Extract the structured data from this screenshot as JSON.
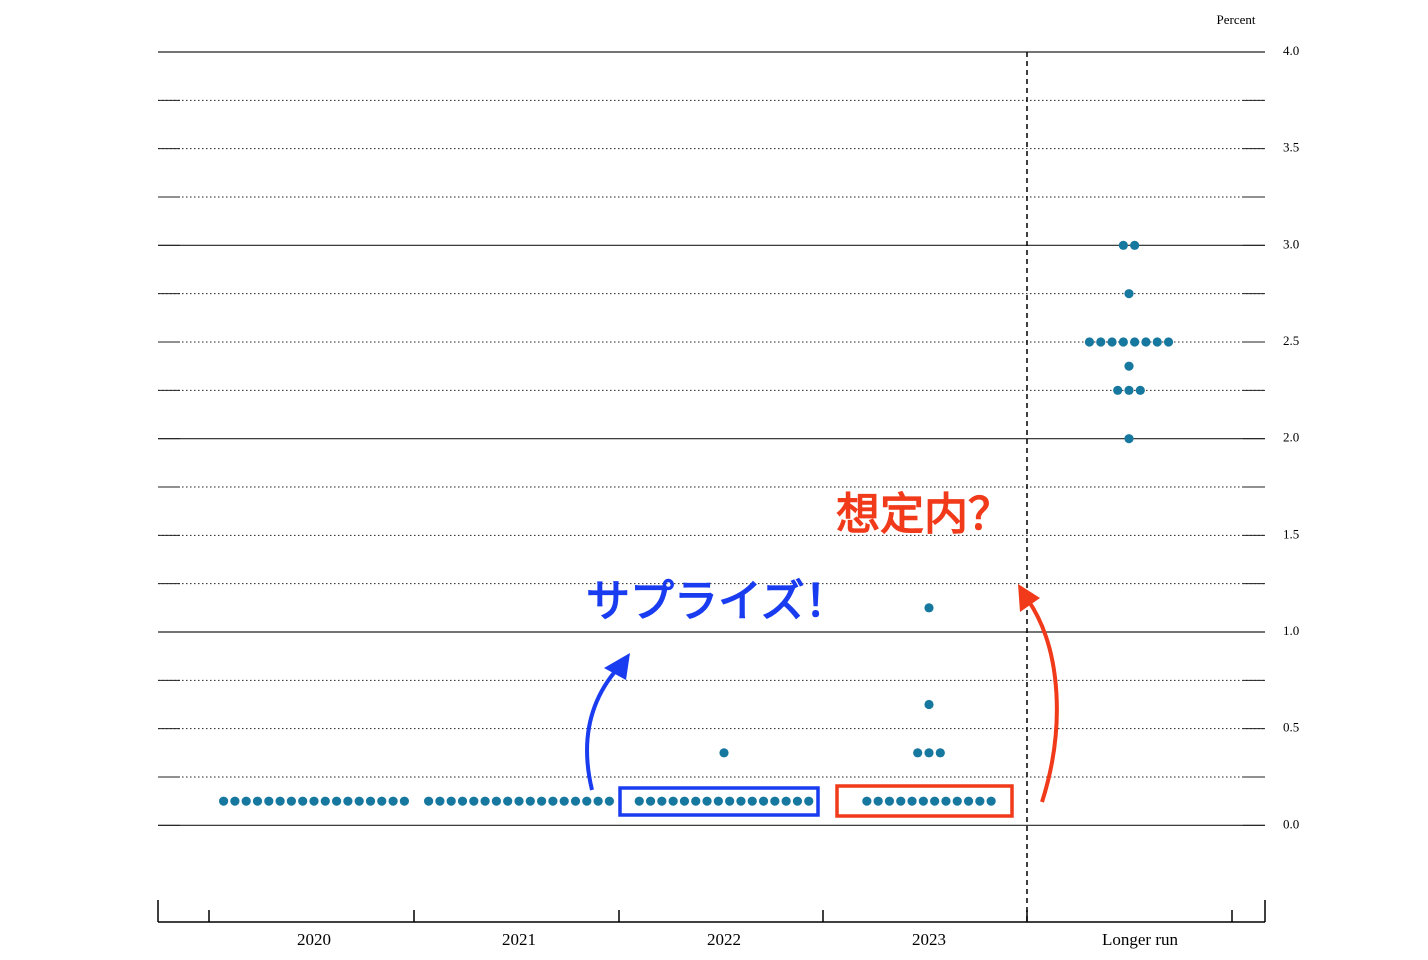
{
  "chart_data": {
    "type": "dot",
    "y_unit_label": "Percent",
    "categories": [
      "2020",
      "2021",
      "2022",
      "2023",
      "Longer run"
    ],
    "levels": [
      [
        0.125
      ],
      [
        0.125
      ],
      [
        0.125,
        0.375
      ],
      [
        0.125,
        0.375,
        0.625,
        1.125
      ],
      [
        2.0,
        2.25,
        2.375,
        2.5,
        2.75,
        3.0
      ]
    ],
    "counts": [
      [
        17
      ],
      [
        17
      ],
      [
        16,
        1
      ],
      [
        12,
        3,
        1,
        1
      ],
      [
        1,
        3,
        1,
        8,
        1,
        2
      ]
    ],
    "color": "#17789f",
    "ylim": [
      -0.5,
      4.0
    ],
    "yticks": [
      {
        "value": 0,
        "label": "0.0"
      },
      {
        "value": 0.5,
        "label": "0.5"
      },
      {
        "value": 1,
        "label": "1.0"
      },
      {
        "value": 1.5,
        "label": "1.5"
      },
      {
        "value": 2,
        "label": "2.0"
      },
      {
        "value": 2.5,
        "label": "2.5"
      },
      {
        "value": 3,
        "label": "3.0"
      },
      {
        "value": 3.5,
        "label": "3.5"
      },
      {
        "value": 4,
        "label": "4.0"
      }
    ],
    "minor_yticks": [
      0.25,
      0.75,
      1.25,
      1.75,
      2.25,
      2.75,
      3.25,
      3.75
    ],
    "grid": true,
    "annotations": [
      {
        "text": "サプライズ！",
        "color": "#1a3cf0"
      },
      {
        "text": "想定内？",
        "color": "#f03a1a"
      }
    ]
  }
}
